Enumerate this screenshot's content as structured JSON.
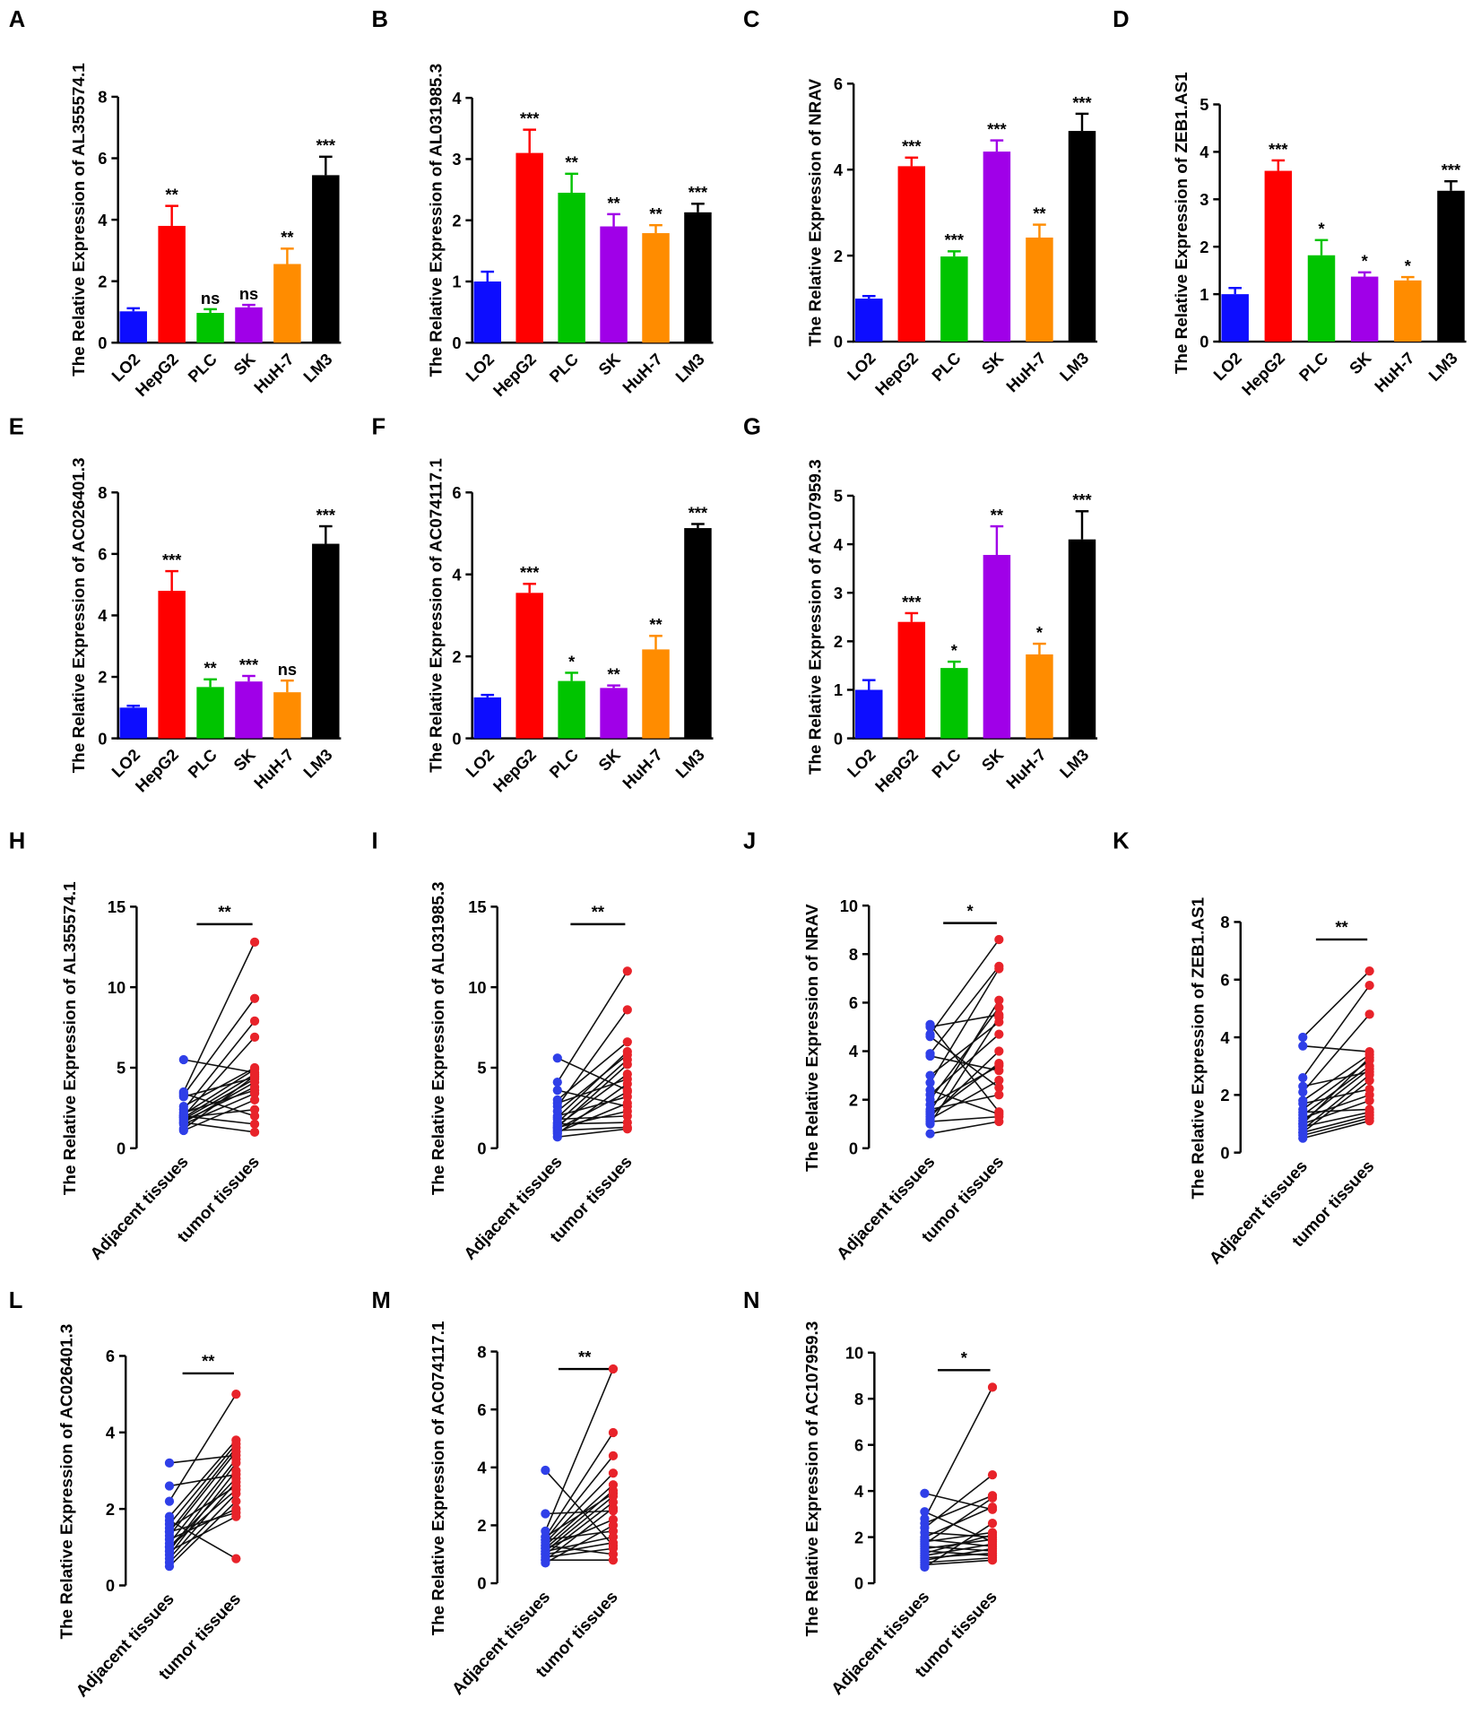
{
  "palette": {
    "bar_colors": [
      "#0d0dff",
      "#ff0000",
      "#00c400",
      "#a000e8",
      "#ff8c00",
      "#000000"
    ],
    "adjacent": "#2f3fe8",
    "tumor": "#e8232a",
    "ink": "#000000"
  },
  "chart_data": [
    {
      "panel": "A",
      "type": "bar",
      "ylabel": "The Relative Expression of AL355574.1",
      "categories": [
        "LO2",
        "HepG2",
        "PLC",
        "SK",
        "HuH-7",
        "LM3"
      ],
      "values": [
        1.02,
        3.8,
        0.97,
        1.15,
        2.56,
        5.45
      ],
      "error": [
        0.1,
        0.65,
        0.12,
        0.08,
        0.5,
        0.6
      ],
      "significance": [
        "",
        "**",
        "ns",
        "ns",
        "**",
        "***"
      ],
      "ylim": [
        0,
        8
      ],
      "y_ticks": [
        0,
        2,
        4,
        6,
        8
      ]
    },
    {
      "panel": "B",
      "type": "bar",
      "ylabel": "The Relative Expression of AL031985.3",
      "categories": [
        "LO2",
        "HepG2",
        "PLC",
        "SK",
        "HuH-7",
        "LM3"
      ],
      "values": [
        1.0,
        3.1,
        2.45,
        1.9,
        1.79,
        2.13
      ],
      "error": [
        0.16,
        0.38,
        0.31,
        0.2,
        0.13,
        0.14
      ],
      "significance": [
        "",
        "***",
        "**",
        "**",
        "**",
        "***"
      ],
      "ylim": [
        0,
        4
      ],
      "y_ticks": [
        0,
        1,
        2,
        3,
        4
      ]
    },
    {
      "panel": "C",
      "type": "bar",
      "ylabel": "The Relative Expression of NRAV",
      "categories": [
        "LO2",
        "HepG2",
        "PLC",
        "SK",
        "HuH-7",
        "LM3"
      ],
      "values": [
        1.0,
        4.08,
        1.98,
        4.42,
        2.42,
        4.9
      ],
      "error": [
        0.06,
        0.2,
        0.12,
        0.26,
        0.3,
        0.4
      ],
      "significance": [
        "",
        "***",
        "***",
        "***",
        "**",
        "***"
      ],
      "ylim": [
        0,
        6
      ],
      "y_ticks": [
        0,
        2,
        4,
        6
      ]
    },
    {
      "panel": "D",
      "type": "bar",
      "ylabel": "The Relative Expression of ZEB1.AS1",
      "categories": [
        "LO2",
        "HepG2",
        "PLC",
        "SK",
        "HuH-7",
        "LM3"
      ],
      "values": [
        1.0,
        3.6,
        1.82,
        1.37,
        1.29,
        3.18
      ],
      "error": [
        0.13,
        0.22,
        0.32,
        0.09,
        0.07,
        0.2
      ],
      "significance": [
        "",
        "***",
        "*",
        "*",
        "*",
        "***"
      ],
      "ylim": [
        0,
        5
      ],
      "y_ticks": [
        0,
        1,
        2,
        3,
        4,
        5
      ]
    },
    {
      "panel": "E",
      "type": "bar",
      "ylabel": "The Relative Expression of AC026401.3",
      "categories": [
        "LO2",
        "HepG2",
        "PLC",
        "SK",
        "HuH-7",
        "LM3"
      ],
      "values": [
        1.0,
        4.8,
        1.67,
        1.85,
        1.5,
        6.33
      ],
      "error": [
        0.06,
        0.64,
        0.25,
        0.18,
        0.38,
        0.57
      ],
      "significance": [
        "",
        "***",
        "**",
        "***",
        "ns",
        "***"
      ],
      "ylim": [
        0,
        8
      ],
      "y_ticks": [
        0,
        2,
        4,
        6,
        8
      ]
    },
    {
      "panel": "F",
      "type": "bar",
      "ylabel": "The Relative Expression of AC074117.1",
      "categories": [
        "LO2",
        "HepG2",
        "PLC",
        "SK",
        "HuH-7",
        "LM3"
      ],
      "values": [
        1.0,
        3.55,
        1.4,
        1.23,
        2.17,
        5.13
      ],
      "error": [
        0.06,
        0.22,
        0.2,
        0.06,
        0.33,
        0.1
      ],
      "significance": [
        "",
        "***",
        "*",
        "**",
        "**",
        "***"
      ],
      "ylim": [
        0,
        6
      ],
      "y_ticks": [
        0,
        2,
        4,
        6
      ]
    },
    {
      "panel": "G",
      "type": "bar",
      "ylabel": "The Relative Expression of AC107959.3",
      "categories": [
        "LO2",
        "HepG2",
        "PLC",
        "SK",
        "HuH-7",
        "LM3"
      ],
      "values": [
        1.0,
        2.4,
        1.45,
        3.78,
        1.73,
        4.1
      ],
      "error": [
        0.2,
        0.18,
        0.13,
        0.59,
        0.22,
        0.58
      ],
      "significance": [
        "",
        "***",
        "*",
        "**",
        "*",
        "***"
      ],
      "ylim": [
        0,
        5
      ],
      "y_ticks": [
        0,
        1,
        2,
        3,
        4,
        5
      ]
    },
    {
      "panel": "H",
      "type": "scatter",
      "ylabel": "The Relative Expression of AL355574.1",
      "series": [
        {
          "name": "Adjacent tissues",
          "values": [
            5.5,
            3.5,
            3.4,
            3.3,
            3.2,
            2.6,
            2.4,
            2.2,
            2.1,
            2.0,
            2.0,
            1.9,
            1.9,
            1.8,
            1.7,
            1.6,
            1.6,
            1.5,
            1.2,
            1.1
          ]
        },
        {
          "name": "tumor tissues",
          "values": [
            4.7,
            12.8,
            2.0,
            9.3,
            4.4,
            5.0,
            7.9,
            3.6,
            4.9,
            1.5,
            6.9,
            4.6,
            2.4,
            4.3,
            3.8,
            1.0,
            4.1,
            3.4,
            4.5,
            3.0
          ]
        }
      ],
      "significance": "**",
      "ylim": [
        0,
        15
      ],
      "y_ticks": [
        0,
        5,
        10,
        15
      ]
    },
    {
      "panel": "I",
      "type": "scatter",
      "ylabel": "The Relative Expression of AL031985.3",
      "series": [
        {
          "name": "Adjacent tissues",
          "values": [
            5.6,
            4.1,
            3.6,
            3.0,
            2.8,
            2.6,
            2.3,
            2.0,
            1.9,
            1.8,
            1.6,
            1.5,
            1.4,
            1.3,
            1.3,
            1.2,
            1.1,
            1.0,
            0.9,
            0.7
          ]
        },
        {
          "name": "tumor tissues",
          "values": [
            3.6,
            11.0,
            2.6,
            6.6,
            4.3,
            8.6,
            5.8,
            3.2,
            6.0,
            2.0,
            5.5,
            1.6,
            4.6,
            5.2,
            2.3,
            3.5,
            1.3,
            2.8,
            4.0,
            1.2
          ]
        }
      ],
      "significance": "**",
      "ylim": [
        0,
        15
      ],
      "y_ticks": [
        0,
        5,
        10,
        15
      ]
    },
    {
      "panel": "J",
      "type": "scatter",
      "ylabel": "The Relative Expression of NRAV",
      "series": [
        {
          "name": "Adjacent tissues",
          "values": [
            5.1,
            5.0,
            4.7,
            4.6,
            3.9,
            3.8,
            3.0,
            2.7,
            2.4,
            2.2,
            2.0,
            1.8,
            1.6,
            1.5,
            1.4,
            1.3,
            1.2,
            1.1,
            1.0,
            0.6
          ]
        },
        {
          "name": "tumor tissues",
          "values": [
            1.5,
            5.5,
            8.6,
            2.5,
            7.5,
            3.2,
            5.2,
            7.4,
            1.4,
            4.7,
            5.8,
            3.4,
            2.2,
            6.1,
            3.5,
            4.0,
            2.8,
            1.3,
            5.4,
            1.1
          ]
        }
      ],
      "significance": "*",
      "ylim": [
        0,
        10
      ],
      "y_ticks": [
        0,
        2,
        4,
        6,
        8,
        10
      ]
    },
    {
      "panel": "K",
      "type": "scatter",
      "ylabel": "The Relative Expression of ZEB1.AS1",
      "series": [
        {
          "name": "Adjacent tissues",
          "values": [
            4.0,
            3.7,
            2.6,
            2.3,
            2.1,
            1.8,
            1.7,
            1.5,
            1.4,
            1.3,
            1.2,
            1.1,
            1.0,
            1.0,
            0.9,
            0.8,
            0.7,
            0.7,
            0.6,
            0.5
          ]
        },
        {
          "name": "tumor tissues",
          "values": [
            6.3,
            3.5,
            5.8,
            2.8,
            4.8,
            3.4,
            2.2,
            3.2,
            1.5,
            3.0,
            2.0,
            2.9,
            1.8,
            3.3,
            1.4,
            2.7,
            1.3,
            2.5,
            1.2,
            1.1
          ]
        }
      ],
      "significance": "**",
      "ylim": [
        0,
        8
      ],
      "y_ticks": [
        0,
        2,
        4,
        6,
        8
      ]
    },
    {
      "panel": "L",
      "type": "scatter",
      "ylabel": "The Relative Expression of AC026401.3",
      "series": [
        {
          "name": "Adjacent tissues",
          "values": [
            3.2,
            2.6,
            2.2,
            1.8,
            1.7,
            1.6,
            1.5,
            1.4,
            1.4,
            1.3,
            1.2,
            1.1,
            1.0,
            1.0,
            0.9,
            0.9,
            0.8,
            0.7,
            0.6,
            0.5
          ]
        },
        {
          "name": "tumor tissues",
          "values": [
            3.4,
            2.9,
            5.0,
            3.8,
            0.7,
            3.7,
            2.6,
            3.6,
            1.9,
            3.5,
            2.0,
            3.3,
            2.8,
            2.5,
            3.2,
            1.8,
            3.0,
            2.7,
            2.4,
            2.2
          ]
        }
      ],
      "significance": "**",
      "ylim": [
        0,
        6
      ],
      "y_ticks": [
        0,
        2,
        4,
        6
      ]
    },
    {
      "panel": "M",
      "type": "scatter",
      "ylabel": "The Relative Expression of AC074117.1",
      "series": [
        {
          "name": "Adjacent tissues",
          "values": [
            3.9,
            2.4,
            1.8,
            1.6,
            1.6,
            1.5,
            1.5,
            1.4,
            1.3,
            1.3,
            1.2,
            1.2,
            1.1,
            1.1,
            1.0,
            1.0,
            0.9,
            0.8,
            0.8,
            0.7
          ]
        },
        {
          "name": "tumor tissues",
          "values": [
            1.3,
            2.5,
            7.4,
            5.2,
            3.1,
            1.8,
            4.4,
            3.8,
            1.0,
            3.4,
            2.2,
            3.2,
            1.6,
            3.0,
            1.4,
            2.8,
            1.2,
            2.6,
            0.8,
            2.0
          ]
        }
      ],
      "significance": "**",
      "ylim": [
        0,
        8
      ],
      "y_ticks": [
        0,
        2,
        4,
        6,
        8
      ]
    },
    {
      "panel": "N",
      "type": "scatter",
      "ylabel": "The Relative Expression of AC107959.3",
      "series": [
        {
          "name": "Adjacent tissues",
          "values": [
            3.9,
            3.1,
            2.8,
            2.6,
            2.4,
            2.2,
            2.0,
            1.9,
            1.8,
            1.7,
            1.6,
            1.5,
            1.4,
            1.3,
            1.2,
            1.1,
            1.0,
            0.9,
            0.8,
            0.7
          ]
        },
        {
          "name": "tumor tissues",
          "values": [
            3.2,
            1.8,
            8.5,
            3.8,
            4.7,
            2.0,
            3.3,
            1.6,
            2.2,
            3.7,
            1.4,
            1.9,
            1.2,
            2.1,
            1.7,
            1.3,
            1.5,
            1.1,
            1.0,
            2.6
          ]
        }
      ],
      "significance": "*",
      "ylim": [
        0,
        10
      ],
      "y_ticks": [
        0,
        2,
        4,
        6,
        8,
        10
      ]
    }
  ]
}
